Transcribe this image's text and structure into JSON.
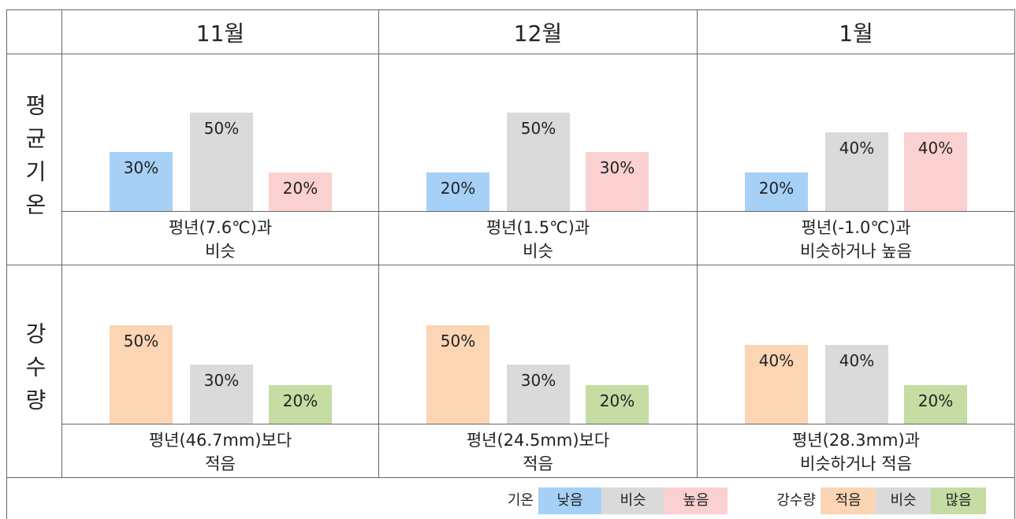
{
  "months": [
    "11월",
    "12월",
    "1월"
  ],
  "rows": [
    {
      "label": "평균기온",
      "colors": [
        "#a7d0f6",
        "#dadada",
        "#fbd0d1"
      ],
      "cells": [
        {
          "values": [
            30,
            50,
            20
          ],
          "value_labels": [
            "30%",
            "50%",
            "20%"
          ],
          "summary": [
            "평년(7.6℃)과",
            "비슷"
          ]
        },
        {
          "values": [
            20,
            50,
            30
          ],
          "value_labels": [
            "20%",
            "50%",
            "30%"
          ],
          "summary": [
            "평년(1.5℃)과",
            "비슷"
          ]
        },
        {
          "values": [
            20,
            40,
            40
          ],
          "value_labels": [
            "20%",
            "40%",
            "40%"
          ],
          "summary": [
            "평년(-1.0℃)과",
            "비슷하거나 높음"
          ]
        }
      ]
    },
    {
      "label": "강수량",
      "colors": [
        "#fcd5b5",
        "#dadada",
        "#c5dca2"
      ],
      "cells": [
        {
          "values": [
            50,
            30,
            20
          ],
          "value_labels": [
            "50%",
            "30%",
            "20%"
          ],
          "summary": [
            "평년(46.7mm)보다",
            "적음"
          ]
        },
        {
          "values": [
            50,
            30,
            20
          ],
          "value_labels": [
            "50%",
            "30%",
            "20%"
          ],
          "summary": [
            "평년(24.5mm)보다",
            "적음"
          ]
        },
        {
          "values": [
            40,
            40,
            20
          ],
          "value_labels": [
            "40%",
            "40%",
            "20%"
          ],
          "summary": [
            "평년(28.3mm)과",
            "비슷하거나 적음"
          ]
        }
      ]
    }
  ],
  "legend": [
    {
      "title": "기온",
      "items": [
        {
          "label": "낮음",
          "color": "#a7d0f6"
        },
        {
          "label": "비슷",
          "color": "#dadada"
        },
        {
          "label": "높음",
          "color": "#fbd0d1"
        }
      ]
    },
    {
      "title": "강수량",
      "items": [
        {
          "label": "적음",
          "color": "#fcd5b5"
        },
        {
          "label": "비슷",
          "color": "#dadada"
        },
        {
          "label": "많음",
          "color": "#c5dca2"
        }
      ]
    }
  ]
}
